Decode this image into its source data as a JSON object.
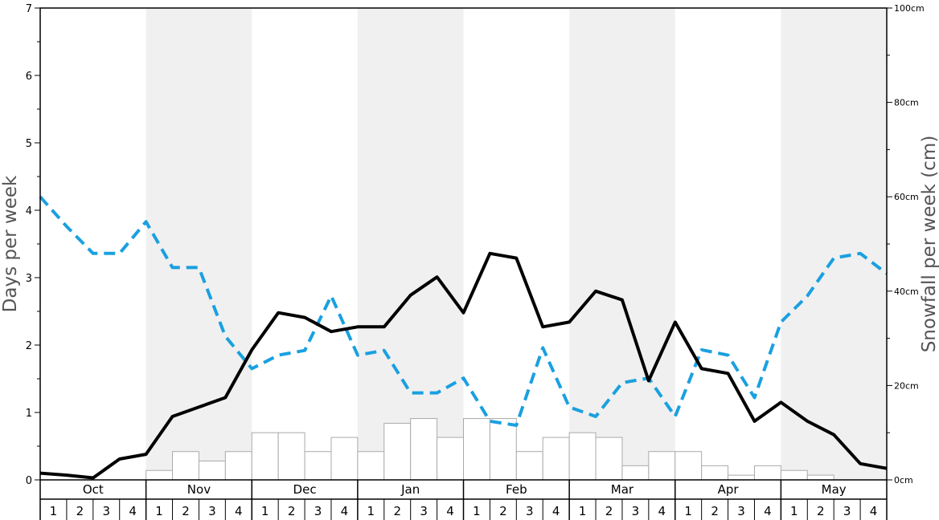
{
  "chart_data": {
    "type": "bar+line",
    "months": [
      "Oct",
      "Nov",
      "Dec",
      "Jan",
      "Feb",
      "Mar",
      "Apr",
      "May"
    ],
    "weeks": [
      "1",
      "2",
      "3",
      "4"
    ],
    "shaded_months": [
      "Nov",
      "Jan",
      "Mar",
      "May"
    ],
    "y_left": {
      "label": "Days per week",
      "range": [
        0,
        7
      ],
      "ticks": [
        0,
        1,
        2,
        3,
        4,
        5,
        6,
        7
      ]
    },
    "y_right": {
      "label": "Snowfall per week (cm)",
      "range": [
        0,
        100
      ],
      "ticks": [
        "0cm",
        "20cm",
        "40cm",
        "60cm",
        "80cm",
        "100cm"
      ],
      "tick_values": [
        0,
        20,
        40,
        60,
        80,
        100
      ]
    },
    "snowfall_bars_cm": [
      0,
      0,
      0,
      0,
      2,
      6,
      4,
      6,
      10,
      10,
      6,
      9,
      6,
      12,
      13,
      9,
      13,
      13,
      6,
      9,
      10,
      9,
      3,
      6,
      6,
      3,
      1,
      3,
      2,
      1,
      0,
      0
    ],
    "series_solid_days": [
      0.1,
      0.07,
      0.03,
      0.31,
      0.38,
      0.94,
      1.08,
      1.22,
      1.93,
      2.48,
      2.41,
      2.2,
      2.27,
      2.27,
      2.74,
      3.01,
      2.48,
      3.36,
      3.29,
      2.27,
      2.34,
      2.8,
      2.67,
      1.47,
      2.34,
      1.65,
      1.58,
      0.87,
      1.15,
      0.87,
      0.67,
      0.24,
      0.17
    ],
    "series_dashed_days": [
      4.2,
      3.76,
      3.36,
      3.36,
      3.83,
      3.15,
      3.15,
      2.13,
      1.65,
      1.85,
      1.92,
      2.73,
      1.85,
      1.92,
      1.29,
      1.29,
      1.51,
      0.87,
      0.81,
      1.96,
      1.08,
      0.94,
      1.44,
      1.51,
      0.94,
      1.93,
      1.85,
      1.22,
      2.34,
      2.73,
      3.29,
      3.36,
      3.06
    ],
    "colors": {
      "solid": "#000000",
      "dashed": "#1aa0e0",
      "bar_fill": "#ffffff",
      "bar_stroke": "#aaaaaa",
      "shade": "#f0f0f0"
    },
    "grid": false
  }
}
